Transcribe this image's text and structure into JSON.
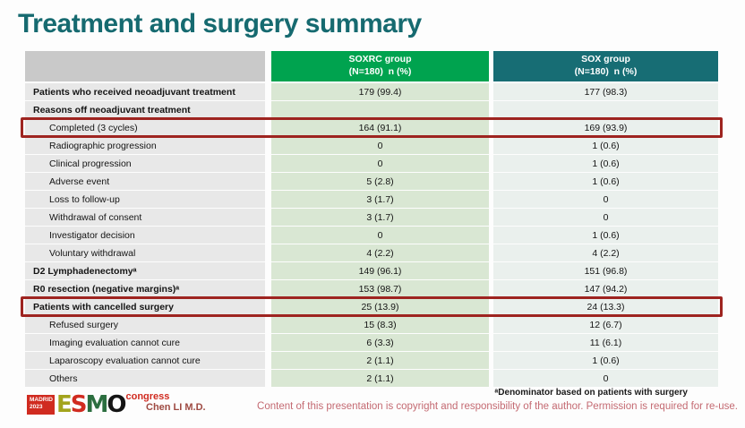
{
  "slide": {
    "title": "Treatment and surgery summary",
    "footnote": "ᵃDenominator based on patients with surgery",
    "copyright": "Content of this presentation is copyright and responsibility of the author. Permission is required for re-use.",
    "author": "Chen LI M.D.",
    "logo": {
      "badge_line1": "MADRID",
      "badge_line2": "2023",
      "letter_e": "E",
      "letter_s": "S",
      "letter_m": "M",
      "letter_o": "O",
      "congress": "congress"
    }
  },
  "table": {
    "columns": [
      {
        "name": "",
        "sub": ""
      },
      {
        "name": "SOXRC group",
        "sub": "(N=180)  n (%)"
      },
      {
        "name": "SOX group",
        "sub": "(N=180)  n (%)"
      }
    ],
    "rows": [
      {
        "label": "Patients who received neoadjuvant treatment",
        "soxrc": "179 (99.4)",
        "sox": "177 (98.3)",
        "bold": true,
        "indent": false,
        "highlight": false
      },
      {
        "label": "Reasons off neoadjuvant treatment",
        "soxrc": "",
        "sox": "",
        "bold": true,
        "indent": false,
        "highlight": false
      },
      {
        "label": "Completed (3 cycles)",
        "soxrc": "164 (91.1)",
        "sox": "169 (93.9)",
        "bold": false,
        "indent": true,
        "highlight": true
      },
      {
        "label": "Radiographic progression",
        "soxrc": "0",
        "sox": "1 (0.6)",
        "bold": false,
        "indent": true,
        "highlight": false
      },
      {
        "label": "Clinical progression",
        "soxrc": "0",
        "sox": "1 (0.6)",
        "bold": false,
        "indent": true,
        "highlight": false
      },
      {
        "label": "Adverse event",
        "soxrc": "5 (2.8)",
        "sox": "1 (0.6)",
        "bold": false,
        "indent": true,
        "highlight": false
      },
      {
        "label": "Loss to follow-up",
        "soxrc": "3 (1.7)",
        "sox": "0",
        "bold": false,
        "indent": true,
        "highlight": false
      },
      {
        "label": "Withdrawal of consent",
        "soxrc": "3 (1.7)",
        "sox": "0",
        "bold": false,
        "indent": true,
        "highlight": false
      },
      {
        "label": "Investigator decision",
        "soxrc": "0",
        "sox": "1 (0.6)",
        "bold": false,
        "indent": true,
        "highlight": false
      },
      {
        "label": "Voluntary withdrawal",
        "soxrc": "4 (2.2)",
        "sox": "4 (2.2)",
        "bold": false,
        "indent": true,
        "highlight": false
      },
      {
        "label": "D2 Lymphadenectomyᵃ",
        "soxrc": "149 (96.1)",
        "sox": "151 (96.8)",
        "bold": true,
        "indent": false,
        "highlight": false
      },
      {
        "label": "R0 resection (negative margins)ᵃ",
        "soxrc": "153 (98.7)",
        "sox": "147 (94.2)",
        "bold": true,
        "indent": false,
        "highlight": false
      },
      {
        "label": "Patients with cancelled surgery",
        "soxrc": "25 (13.9)",
        "sox": "24 (13.3)",
        "bold": true,
        "indent": false,
        "highlight": true
      },
      {
        "label": "Refused surgery",
        "soxrc": "15 (8.3)",
        "sox": "12 (6.7)",
        "bold": false,
        "indent": true,
        "highlight": false
      },
      {
        "label": "Imaging evaluation cannot cure",
        "soxrc": "6 (3.3)",
        "sox": "11 (6.1)",
        "bold": false,
        "indent": true,
        "highlight": false
      },
      {
        "label": "Laparoscopy evaluation cannot cure",
        "soxrc": "2 (1.1)",
        "sox": "1 (0.6)",
        "bold": false,
        "indent": true,
        "highlight": false
      },
      {
        "label": "Others",
        "soxrc": "2 (1.1)",
        "sox": "0",
        "bold": false,
        "indent": true,
        "highlight": false
      }
    ]
  },
  "colors": {
    "title-teal": "#166a70",
    "soxrc-green": "#00a34f",
    "sox-teal": "#176d74",
    "header-grey": "#c9c9c9",
    "label-cell-grey": "#e8e8e8",
    "soxrc-cell-green": "#d9e7d3",
    "sox-cell-green": "#eaf0ed",
    "highlight-red": "#9e2420",
    "copyright-pink": "#c46a72",
    "author-red": "#9e4a42",
    "logo-red": "#d02b20"
  }
}
